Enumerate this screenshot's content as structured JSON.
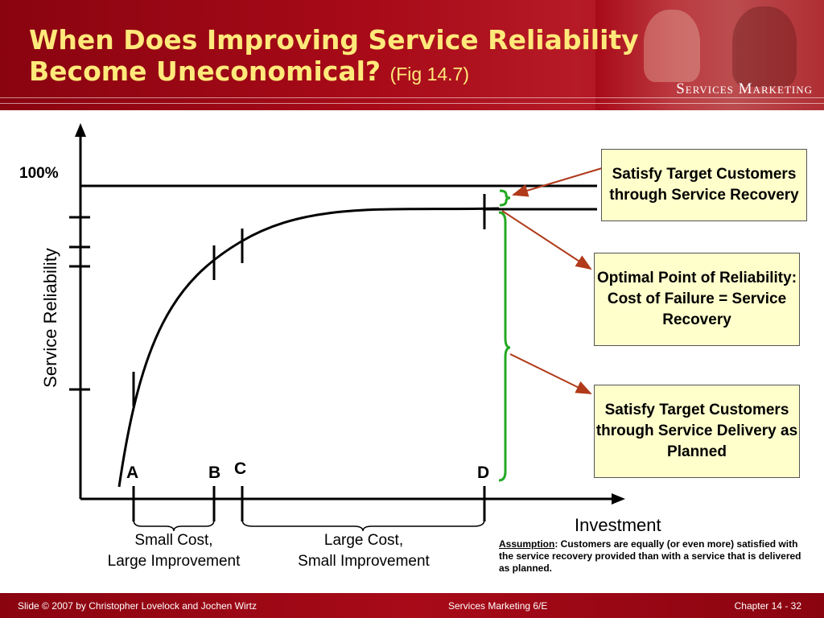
{
  "header": {
    "title_line1": "When Does Improving Service Reliability",
    "title_line2": "Become Uneconomical?",
    "title_fig": "(Fig 14.7)",
    "brand": "Services Marketing",
    "accent_color": "#a80a18",
    "title_color": "#ffe97a"
  },
  "diagram": {
    "y_axis_label": "Service Reliability",
    "x_axis_label": "Investment",
    "hundred_label": "100%",
    "points": [
      "A",
      "B",
      "C",
      "D"
    ],
    "boxes": [
      {
        "text": "Satisfy Target Customers through Service Recovery"
      },
      {
        "text": "Optimal Point of Reliability: Cost of Failure = Service Recovery"
      },
      {
        "text": "Satisfy Target Customers through Service Delivery as Planned"
      }
    ],
    "brace_captions": [
      {
        "line1": "Small Cost,",
        "line2": "Large Improvement"
      },
      {
        "line1": "Large Cost,",
        "line2": "Small Improvement"
      }
    ],
    "assumption_title": "Assumption",
    "assumption_text": ": Customers are equally (or even more) satisfied with the service recovery provided than with a service that is delivered as planned.",
    "box_color": "#ffffcc",
    "arrow_color": "#b03a1a",
    "brace_color": "#22aa22"
  },
  "footer": {
    "left": "Slide © 2007 by Christopher Lovelock and Jochen Wirtz",
    "center": "Services Marketing 6/E",
    "right": "Chapter 14 - 32"
  }
}
